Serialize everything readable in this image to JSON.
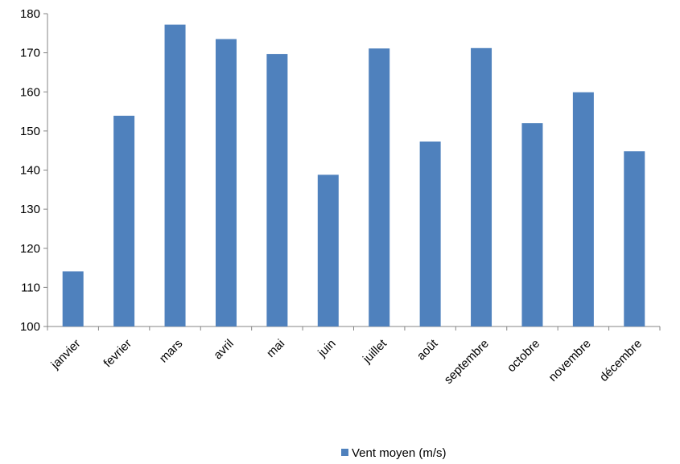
{
  "chart_data": {
    "type": "bar",
    "title": "",
    "xlabel": "",
    "ylabel": "",
    "categories": [
      "janvier",
      "fevrier",
      "mars",
      "avril",
      "mai",
      "juin",
      "juillet",
      "août",
      "septembre",
      "octobre",
      "novembre",
      "décembre"
    ],
    "series": [
      {
        "name": "Vent moyen (m/s)",
        "color": "#4f81bd",
        "values": [
          114.1,
          153.9,
          177.2,
          173.5,
          169.7,
          138.8,
          171.1,
          147.3,
          171.2,
          152.0,
          159.9,
          144.8
        ]
      }
    ],
    "ylim": [
      100,
      180
    ],
    "yticks": [
      100,
      110,
      120,
      130,
      140,
      150,
      160,
      170,
      180
    ],
    "grid": false,
    "legend_position": "bottom"
  }
}
